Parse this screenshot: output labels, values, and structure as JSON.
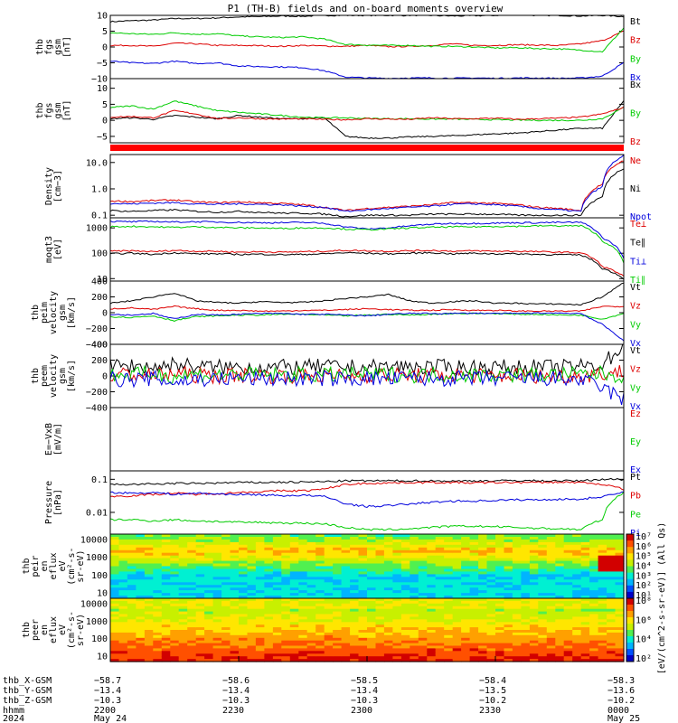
{
  "title": "P1 (TH-B) fields and on-board moments overview",
  "colors": {
    "black": "#000000",
    "red": "#dd0000",
    "green": "#00cc00",
    "blue": "#0000dd"
  },
  "chart_data": [
    {
      "type": "line",
      "name": "fgs",
      "ylabel": [
        "thb",
        "fgs",
        "gsm",
        "[nT]"
      ],
      "ylim": [
        -10,
        10
      ],
      "yticks": [
        "10",
        "5",
        "0",
        "−5",
        "−10"
      ],
      "ytick_vals": [
        10,
        5,
        0,
        -5,
        -10
      ],
      "series": [
        {
          "name": "Bt",
          "color": "black",
          "values": [
            8,
            8.3,
            8.5,
            9,
            9,
            9.2,
            9.5,
            9.6,
            9.8,
            9.7,
            10,
            10,
            10,
            10,
            10,
            10,
            9.8,
            9.9,
            10,
            10.2,
            10,
            10,
            9.8,
            10,
            9.6
          ]
        },
        {
          "name": "Bz",
          "color": "red",
          "values": [
            0.5,
            0.5,
            0.2,
            1.2,
            1,
            0.5,
            0.5,
            0.4,
            0.2,
            0.5,
            0.3,
            0.2,
            0.5,
            0.1,
            0.2,
            0.5,
            1,
            0.5,
            0.5,
            0.7,
            0.6,
            0.5,
            1,
            2,
            5
          ]
        },
        {
          "name": "By",
          "color": "green",
          "values": [
            4.5,
            4.2,
            4,
            4.5,
            4,
            4.2,
            3.5,
            3.2,
            3,
            3.2,
            2.5,
            0.8,
            0.6,
            0.5,
            0.5,
            0.2,
            0.2,
            0,
            -0.3,
            -0.2,
            -0.5,
            -0.6,
            -1,
            -1.5,
            6
          ]
        },
        {
          "name": "Bx",
          "color": "blue",
          "values": [
            -4.5,
            -5,
            -5.2,
            -4.5,
            -5.2,
            -5,
            -6,
            -6.2,
            -6.3,
            -6.5,
            -7.5,
            -9.5,
            -9.8,
            -9.9,
            -9.8,
            -9.8,
            -9.9,
            -9.8,
            -9.9,
            -9.8,
            -9.8,
            -9.9,
            -9.8,
            -9.2,
            -5
          ]
        }
      ]
    },
    {
      "type": "line",
      "name": "fgs-sm",
      "ylabel": [
        "thb",
        "fgs",
        "gsm",
        "[nT]"
      ],
      "ylim": [
        -7,
        13
      ],
      "yticks": [
        "10",
        "5",
        "0",
        "−5"
      ],
      "ytick_vals": [
        10,
        5,
        0,
        -5
      ],
      "series": [
        {
          "name": "Bx",
          "color": "black",
          "values": [
            0.5,
            0.8,
            0.3,
            1.5,
            1,
            0.5,
            1.5,
            1,
            0.5,
            0.5,
            0.8,
            -5,
            -5.5,
            -5.5,
            -5.2,
            -5,
            -4.8,
            -4.5,
            -4.2,
            -4,
            -3.5,
            -3,
            -2.5,
            -2.5,
            6
          ]
        },
        {
          "name": "By",
          "color": "green",
          "values": [
            4,
            4.5,
            3.5,
            6,
            4.5,
            3,
            2.5,
            2,
            1.5,
            1,
            0.8,
            0.8,
            0.6,
            0.5,
            0.5,
            0.4,
            0.4,
            0.3,
            0.2,
            0.1,
            0,
            0,
            0,
            0.5,
            4
          ]
        },
        {
          "name": "Bz",
          "color": "red",
          "values": [
            1,
            1.2,
            0.8,
            3,
            2,
            0.5,
            0.8,
            0.5,
            0.4,
            0.5,
            0.3,
            0.2,
            0.5,
            0.4,
            0.3,
            0.8,
            0.5,
            0.5,
            0.7,
            0.3,
            0.5,
            0.7,
            1,
            2,
            4
          ]
        }
      ]
    },
    {
      "type": "line",
      "name": "density",
      "ylabel": [
        "Density",
        "[cm−3]"
      ],
      "ylog": true,
      "ylim": [
        0.08,
        20
      ],
      "yticks": [
        "10.0",
        "1.0",
        "0.1"
      ],
      "ytick_vals": [
        10,
        1,
        0.1
      ],
      "series": [
        {
          "name": "Ne",
          "color": "red",
          "values": [
            0.35,
            0.33,
            0.36,
            0.38,
            0.32,
            0.3,
            0.32,
            0.3,
            0.28,
            0.25,
            0.2,
            0.15,
            0.18,
            0.2,
            0.22,
            0.25,
            0.3,
            0.3,
            0.28,
            0.25,
            0.2,
            0.18,
            0.15,
            1.5,
            12
          ]
        },
        {
          "name": "Ni",
          "color": "black",
          "values": [
            0.15,
            0.14,
            0.15,
            0.16,
            0.14,
            0.13,
            0.14,
            0.13,
            0.12,
            0.12,
            0.11,
            0.09,
            0.1,
            0.1,
            0.1,
            0.11,
            0.11,
            0.11,
            0.11,
            0.1,
            0.1,
            0.1,
            0.1,
            0.5,
            6
          ]
        },
        {
          "name": "Npot",
          "color": "blue",
          "values": [
            0.28,
            0.27,
            0.29,
            0.3,
            0.27,
            0.26,
            0.27,
            0.26,
            0.25,
            0.22,
            0.2,
            0.14,
            0.16,
            0.18,
            0.2,
            0.22,
            0.26,
            0.27,
            0.25,
            0.22,
            0.18,
            0.16,
            0.14,
            1.2,
            18
          ]
        }
      ]
    },
    {
      "type": "line",
      "name": "temperature",
      "ylabel": [
        "moqt3",
        "[eV]"
      ],
      "ylog": true,
      "ylim": [
        8,
        2500
      ],
      "yticks": [
        "1000",
        "100",
        "10"
      ],
      "ytick_vals": [
        1000,
        100,
        10
      ],
      "series": [
        {
          "name": "Te⊥",
          "color": "red",
          "values": [
            120,
            125,
            115,
            130,
            120,
            120,
            110,
            115,
            110,
            115,
            120,
            130,
            125,
            120,
            125,
            130,
            120,
            125,
            120,
            120,
            115,
            110,
            105,
            30,
            12
          ]
        },
        {
          "name": "Te∥",
          "color": "black",
          "values": [
            95,
            100,
            90,
            105,
            95,
            95,
            90,
            92,
            88,
            90,
            95,
            105,
            100,
            95,
            100,
            105,
            95,
            100,
            95,
            95,
            90,
            88,
            85,
            25,
            10
          ]
        },
        {
          "name": "Ti⊥",
          "color": "blue",
          "values": [
            1800,
            1750,
            1800,
            1700,
            1750,
            1700,
            1650,
            1600,
            1600,
            1650,
            1500,
            1100,
            900,
            1000,
            1200,
            1400,
            1500,
            1500,
            1550,
            1600,
            1600,
            1650,
            1650,
            400,
            60
          ]
        },
        {
          "name": "Ti∥",
          "color": "green",
          "values": [
            1100,
            1150,
            1100,
            1050,
            1100,
            1050,
            1000,
            1000,
            950,
            1000,
            1000,
            900,
            850,
            900,
            1000,
            1050,
            1100,
            1100,
            1150,
            1150,
            1200,
            1200,
            1200,
            300,
            40
          ]
        }
      ]
    },
    {
      "type": "line",
      "name": "peim",
      "ylabel": [
        "thb",
        "peim",
        "velocity",
        "gsm",
        "[km/s]"
      ],
      "ylim": [
        -400,
        400
      ],
      "yticks": [
        "400",
        "200",
        "0",
        "−200",
        "−400"
      ],
      "ytick_vals": [
        400,
        200,
        0,
        -200,
        -400
      ],
      "series": [
        {
          "name": "Vt",
          "color": "black",
          "values": [
            120,
            150,
            200,
            250,
            150,
            130,
            120,
            140,
            130,
            130,
            150,
            180,
            200,
            230,
            150,
            120,
            140,
            150,
            120,
            120,
            110,
            110,
            100,
            200,
            380
          ]
        },
        {
          "name": "Vz",
          "color": "red",
          "values": [
            50,
            60,
            40,
            80,
            50,
            30,
            30,
            20,
            20,
            30,
            30,
            40,
            50,
            40,
            30,
            30,
            40,
            30,
            30,
            20,
            20,
            20,
            20,
            80,
            80
          ]
        },
        {
          "name": "Vy",
          "color": "green",
          "values": [
            -50,
            -60,
            -40,
            -100,
            -50,
            -40,
            -30,
            -30,
            -20,
            -20,
            -30,
            -40,
            -30,
            -20,
            -30,
            -20,
            -10,
            -10,
            -10,
            -20,
            -20,
            -30,
            -30,
            -80,
            -10
          ]
        },
        {
          "name": "Vx",
          "color": "blue",
          "values": [
            -20,
            -30,
            -10,
            -80,
            -20,
            -30,
            -20,
            -10,
            -10,
            -20,
            -20,
            -30,
            -40,
            -20,
            -10,
            -10,
            -10,
            -5,
            -10,
            -10,
            -5,
            -5,
            -10,
            -150,
            -350
          ]
        }
      ]
    },
    {
      "type": "line",
      "name": "peem",
      "ylabel": [
        "thb",
        "peem",
        "velocity",
        "gsm",
        "[km/s]"
      ],
      "ylim": [
        -400,
        400
      ],
      "yticks": [
        "400",
        "200",
        "0",
        "−200",
        "−400"
      ],
      "ytick_vals": [
        400,
        200,
        0,
        -200,
        -400
      ],
      "series": [
        {
          "name": "Vt",
          "color": "black",
          "values": [
            120,
            130,
            110,
            150,
            120,
            110,
            110,
            115,
            110,
            110,
            120,
            110,
            110,
            115,
            120,
            110,
            115,
            110,
            110,
            110,
            110,
            110,
            120,
            150,
            380
          ]
        },
        {
          "name": "Vz",
          "color": "red",
          "values": [
            10,
            20,
            0,
            30,
            10,
            0,
            10,
            5,
            0,
            10,
            10,
            0,
            10,
            5,
            10,
            0,
            10,
            5,
            0,
            10,
            5,
            0,
            10,
            30,
            60
          ]
        },
        {
          "name": "Vy",
          "color": "green",
          "values": [
            20,
            10,
            30,
            0,
            20,
            10,
            20,
            15,
            10,
            20,
            10,
            20,
            15,
            20,
            10,
            15,
            20,
            10,
            15,
            20,
            10,
            15,
            20,
            30,
            0
          ]
        },
        {
          "name": "Vx",
          "color": "blue",
          "values": [
            -40,
            -50,
            -30,
            -80,
            -40,
            -40,
            -30,
            -40,
            -30,
            -40,
            -30,
            -40,
            -30,
            -40,
            -30,
            -40,
            -30,
            -40,
            -30,
            -40,
            -30,
            -40,
            -50,
            -150,
            -300
          ]
        }
      ]
    },
    {
      "type": "line",
      "name": "efield",
      "ylabel": [
        "E=−VxB",
        "[mV/m]"
      ],
      "ylim": [
        0,
        1
      ],
      "yticks": [],
      "ytick_vals": [],
      "series": [
        {
          "name": "Ez",
          "color": "red",
          "values": []
        },
        {
          "name": "Ey",
          "color": "green",
          "values": []
        },
        {
          "name": "Ex",
          "color": "blue",
          "values": []
        }
      ]
    },
    {
      "type": "line",
      "name": "pressure",
      "ylabel": [
        "Pressure",
        "[nPa]"
      ],
      "ylog": true,
      "ylim": [
        0.0022,
        0.18
      ],
      "yticks": [
        "0.1",
        "0.01"
      ],
      "ytick_vals": [
        0.1,
        0.01
      ],
      "series": [
        {
          "name": "Pt",
          "color": "black",
          "values": [
            0.07,
            0.07,
            0.072,
            0.075,
            0.075,
            0.077,
            0.08,
            0.08,
            0.082,
            0.082,
            0.085,
            0.09,
            0.09,
            0.09,
            0.09,
            0.09,
            0.088,
            0.09,
            0.09,
            0.092,
            0.09,
            0.09,
            0.09,
            0.1,
            0.1
          ]
        },
        {
          "name": "Pb",
          "color": "red",
          "values": [
            0.03,
            0.032,
            0.035,
            0.038,
            0.035,
            0.037,
            0.04,
            0.042,
            0.045,
            0.045,
            0.05,
            0.07,
            0.075,
            0.078,
            0.08,
            0.08,
            0.08,
            0.078,
            0.08,
            0.08,
            0.08,
            0.082,
            0.08,
            0.07,
            0.05
          ]
        },
        {
          "name": "Pe",
          "color": "green",
          "values": [
            0.006,
            0.006,
            0.0055,
            0.006,
            0.0055,
            0.0053,
            0.005,
            0.005,
            0.0048,
            0.0047,
            0.0045,
            0.0035,
            0.003,
            0.003,
            0.0032,
            0.0035,
            0.0038,
            0.0038,
            0.0037,
            0.0035,
            0.0033,
            0.0032,
            0.003,
            0.006,
            0.04
          ]
        },
        {
          "name": "Pi",
          "color": "blue",
          "values": [
            0.04,
            0.038,
            0.04,
            0.035,
            0.038,
            0.036,
            0.035,
            0.034,
            0.032,
            0.033,
            0.03,
            0.018,
            0.015,
            0.016,
            0.018,
            0.02,
            0.022,
            0.022,
            0.023,
            0.024,
            0.024,
            0.025,
            0.025,
            0.03,
            0.04
          ]
        }
      ]
    },
    {
      "type": "heatmap",
      "name": "peir",
      "ylabel": [
        "thb",
        "peir",
        "en",
        "eflux",
        "eV",
        "(cm²-s-",
        "sr-eV)"
      ],
      "yticks": [
        "10000",
        "1000",
        "100",
        "10"
      ],
      "ytick_vals": [
        10000,
        1000,
        100,
        10
      ],
      "ylog": true,
      "ylim": [
        5,
        20000
      ]
    },
    {
      "type": "heatmap",
      "name": "peer",
      "ylabel": [
        "thb",
        "peer",
        "en",
        "eflux",
        "eV",
        "(cm²-s-",
        "sr-eV)"
      ],
      "yticks": [
        "10000",
        "1000",
        "100",
        "10"
      ],
      "ytick_vals": [
        10000,
        1000,
        100,
        10
      ],
      "ylog": true,
      "ylim": [
        5,
        20000
      ]
    }
  ],
  "colorbar": {
    "label": "[eV/(cm^2-s-sr-eV)] (All Qs)",
    "ticks_top": [
      "10⁷",
      "10⁶",
      "10⁵",
      "10⁴",
      "10³",
      "10²",
      "10¹"
    ],
    "ticks_bottom": [
      "10⁸",
      "10⁶",
      "10⁴",
      "10²"
    ]
  },
  "xaxis": {
    "row_labels": [
      "thb_X-GSM",
      "thb_Y-GSM",
      "thb_Z-GSM",
      "hhmm",
      "2024"
    ],
    "columns": [
      {
        "x": "−58.7",
        "y": "−13.4",
        "z": "−10.3",
        "hhmm": "2200",
        "date": "May 24"
      },
      {
        "x": "−58.6",
        "y": "−13.4",
        "z": "−10.3",
        "hhmm": "2230",
        "date": ""
      },
      {
        "x": "−58.5",
        "y": "−13.4",
        "z": "−10.3",
        "hhmm": "2300",
        "date": ""
      },
      {
        "x": "−58.4",
        "y": "−13.5",
        "z": "−10.2",
        "hhmm": "2330",
        "date": ""
      },
      {
        "x": "−58.3",
        "y": "−13.6",
        "z": "−10.2",
        "hhmm": "0000",
        "date": "May 25"
      }
    ]
  }
}
